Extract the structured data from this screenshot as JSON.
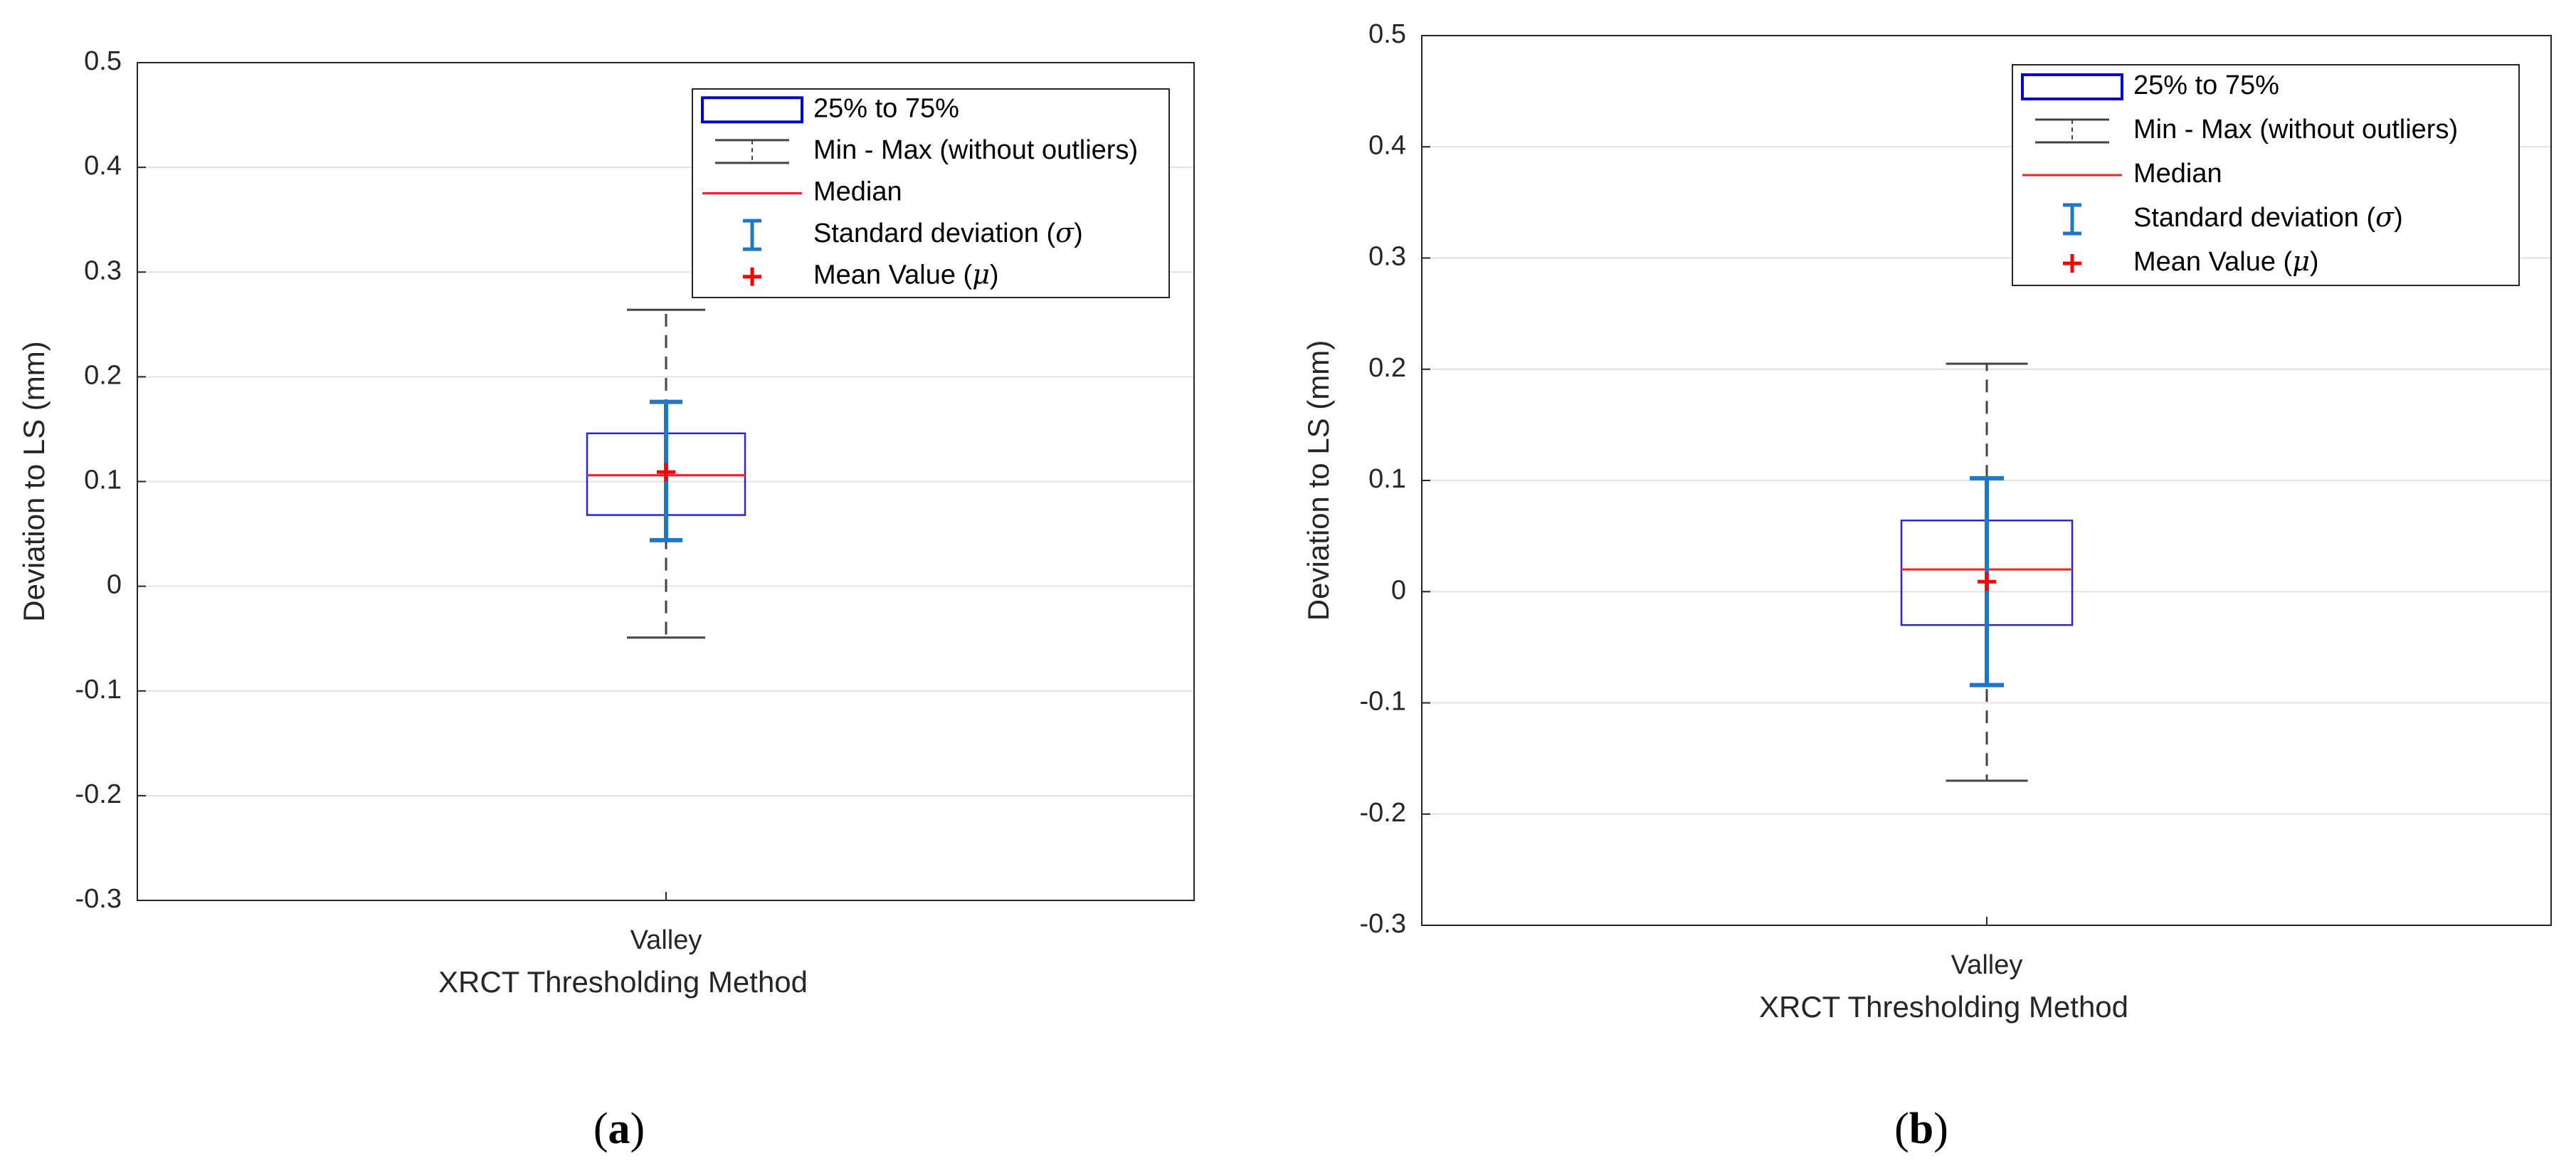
{
  "chart_data": [
    {
      "type": "box",
      "panel_label": "(a)",
      "panel_letter": "a",
      "title": "",
      "xlabel": "XRCT Thresholding Method",
      "ylabel": "Deviation to LS (mm)",
      "categories": [
        "Valley"
      ],
      "ylim": [
        -0.3,
        0.5
      ],
      "yticks": [
        -0.3,
        -0.2,
        -0.1,
        0,
        0.1,
        0.2,
        0.3,
        0.4,
        0.5
      ],
      "ytick_labels": [
        "-0.3",
        "-0.2",
        "-0.1",
        "0",
        "0.1",
        "0.2",
        "0.3",
        "0.4",
        "0.5"
      ],
      "grid": true,
      "box": {
        "q1": 0.068,
        "median": 0.106,
        "q3": 0.146,
        "min": -0.049,
        "max": 0.264
      },
      "mean": 0.109,
      "std_bar": {
        "low": 0.044,
        "high": 0.176
      },
      "legend": {
        "position": "top-right",
        "entries": [
          "25% to 75%",
          "Min - Max (without outliers)",
          "Median",
          "Standard deviation (σ)",
          "Mean Value (μ)"
        ]
      }
    },
    {
      "type": "box",
      "panel_label": "(b)",
      "panel_letter": "b",
      "title": "",
      "xlabel": "XRCT Thresholding Method",
      "ylabel": "Deviation to LS (mm)",
      "categories": [
        "Valley"
      ],
      "ylim": [
        -0.3,
        0.5
      ],
      "yticks": [
        -0.3,
        -0.2,
        -0.1,
        0,
        0.1,
        0.2,
        0.3,
        0.4,
        0.5
      ],
      "ytick_labels": [
        "-0.3",
        "-0.2",
        "-0.1",
        "0",
        "0.1",
        "0.2",
        "0.3",
        "0.4",
        "0.5"
      ],
      "grid": true,
      "box": {
        "q1": -0.03,
        "median": 0.02,
        "q3": 0.064,
        "min": -0.17,
        "max": 0.205
      },
      "mean": 0.009,
      "std_bar": {
        "low": -0.084,
        "high": 0.102
      },
      "legend": {
        "position": "top-right",
        "entries": [
          "25% to 75%",
          "Min - Max (without outliers)",
          "Median",
          "Standard deviation (σ)",
          "Mean Value (μ)"
        ]
      }
    }
  ],
  "colors": {
    "box": "#0000dd",
    "median": "#ff2020",
    "whisker": "#444444",
    "std": "#1f77c8",
    "mean": "#ff0000",
    "grid": "#e3e3e3",
    "axis": "#262626"
  }
}
